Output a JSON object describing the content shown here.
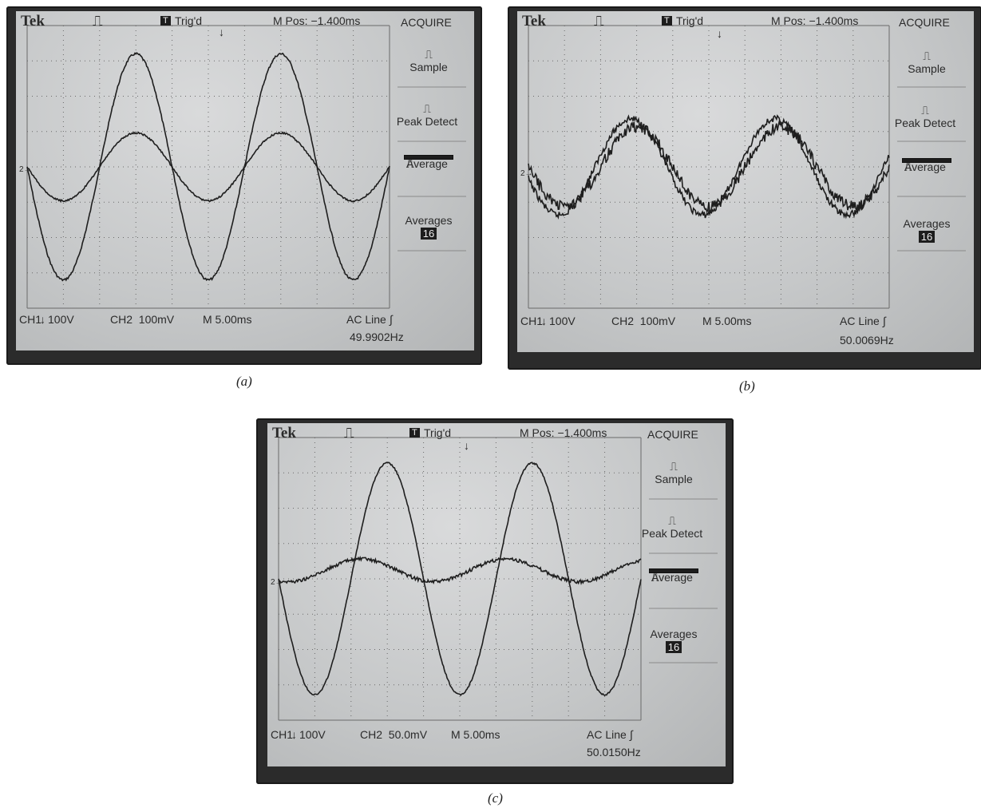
{
  "panels": [
    {
      "caption": "(a)",
      "brand": "Tek",
      "trig_status": "Trig'd",
      "trig_badge": "T",
      "m_pos": "M Pos: −1.400ms",
      "menu_title": "ACQUIRE",
      "menu": {
        "sample": "Sample",
        "peak": "Peak Detect",
        "average": "Average",
        "averages_label": "Averages",
        "averages_value": "16"
      },
      "ch1": "CH1",
      "ch1_arrow": "↓",
      "ch1_scale": "100V",
      "ch2": "CH2  100mV",
      "timebase": "M 5.00ms",
      "trigger_source": "AC Line",
      "frequency": "49.9902Hz",
      "marker": "2→"
    },
    {
      "caption": "(b)",
      "brand": "Tek",
      "trig_status": "Trig'd",
      "trig_badge": "T",
      "m_pos": "M Pos: −1.400ms",
      "menu_title": "ACQUIRE",
      "menu": {
        "sample": "Sample",
        "peak": "Peak Detect",
        "average": "Average",
        "averages_label": "Averages",
        "averages_value": "16"
      },
      "ch1": "CH1",
      "ch1_arrow": "↓",
      "ch1_scale": "100V",
      "ch2": "CH2  100mV",
      "timebase": "M 5.00ms",
      "trigger_source": "AC Line",
      "frequency": "50.0069Hz",
      "marker": "2→"
    },
    {
      "caption": "(c)",
      "brand": "Tek",
      "trig_status": "Trig'd",
      "trig_badge": "T",
      "m_pos": "M Pos: −1.400ms",
      "menu_title": "ACQUIRE",
      "menu": {
        "sample": "Sample",
        "peak": "Peak Detect",
        "average": "Average",
        "averages_label": "Averages",
        "averages_value": "16"
      },
      "ch1": "CH1",
      "ch1_arrow": "↓",
      "ch1_scale": "100V",
      "ch2": "CH2  50.0mV",
      "timebase": "M 5.00ms",
      "trigger_source": "AC Line",
      "frequency": "50.0150Hz",
      "marker": "2→"
    }
  ],
  "colors": {
    "trace": "#1e1e1e",
    "grid": "#6a6a6a",
    "screen": "#c8cacb",
    "bezel": "#2b2b2b"
  }
}
